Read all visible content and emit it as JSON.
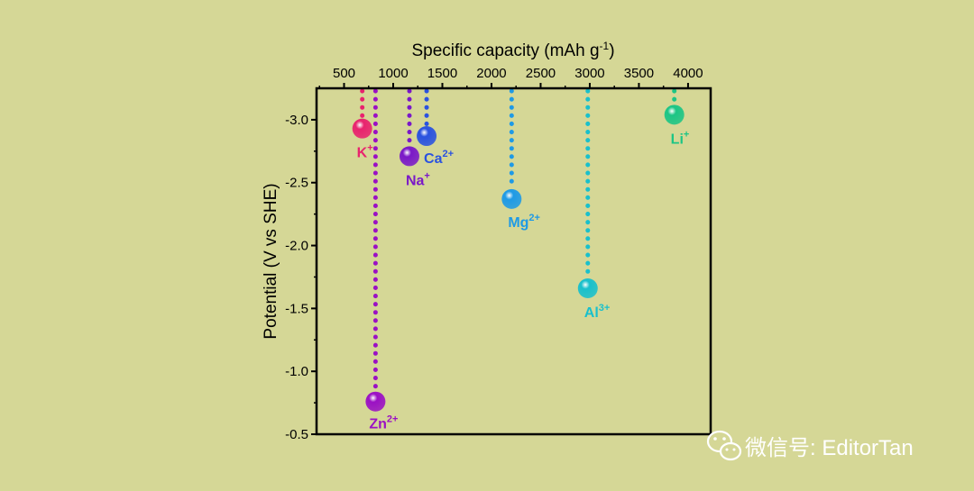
{
  "chart_data": {
    "type": "scatter",
    "xlabel": "Specific capacity (mAh g",
    "xlabel_sup": "-1",
    "xlabel_end": ")",
    "ylabel": "Potential (V vs SHE)",
    "xlim": [
      220,
      4230
    ],
    "ylim": [
      -0.5,
      -3.25
    ],
    "xticks": [
      500,
      1000,
      1500,
      2000,
      2500,
      3000,
      3500,
      4000
    ],
    "xtick_labels": [
      "500",
      "1000",
      "1500",
      "2000",
      "2500",
      "3000",
      "3500",
      "4000"
    ],
    "yticks": [
      -3.0,
      -2.5,
      -2.0,
      -1.5,
      -1.0,
      -0.5
    ],
    "ytick_labels": [
      "-3.0",
      "-2.5",
      "-2.0",
      "-1.5",
      "-1.0",
      "-0.5"
    ],
    "series": [
      {
        "name": "K",
        "label": "K",
        "sup": "+",
        "x": 685,
        "y": -2.93,
        "color": "#e8236e"
      },
      {
        "name": "Zn",
        "label": "Zn",
        "sup": "2+",
        "x": 820,
        "y": -0.76,
        "color": "#9b10c4"
      },
      {
        "name": "Na",
        "label": "Na",
        "sup": "+",
        "x": 1165,
        "y": -2.71,
        "color": "#7a18c8"
      },
      {
        "name": "Ca",
        "label": "Ca",
        "sup": "2+",
        "x": 1340,
        "y": -2.87,
        "color": "#2a52e0"
      },
      {
        "name": "Mg",
        "label": "Mg",
        "sup": "2+",
        "x": 2205,
        "y": -2.37,
        "color": "#1e9ae6"
      },
      {
        "name": "Al",
        "label": "Al",
        "sup": "3+",
        "x": 2980,
        "y": -1.66,
        "color": "#19c0cc"
      },
      {
        "name": "Li",
        "label": "Li",
        "sup": "+",
        "x": 3860,
        "y": -3.04,
        "color": "#1cc585"
      }
    ]
  },
  "watermark": {
    "text": "微信号: EditorTan",
    "icon": "wechat-icon"
  }
}
